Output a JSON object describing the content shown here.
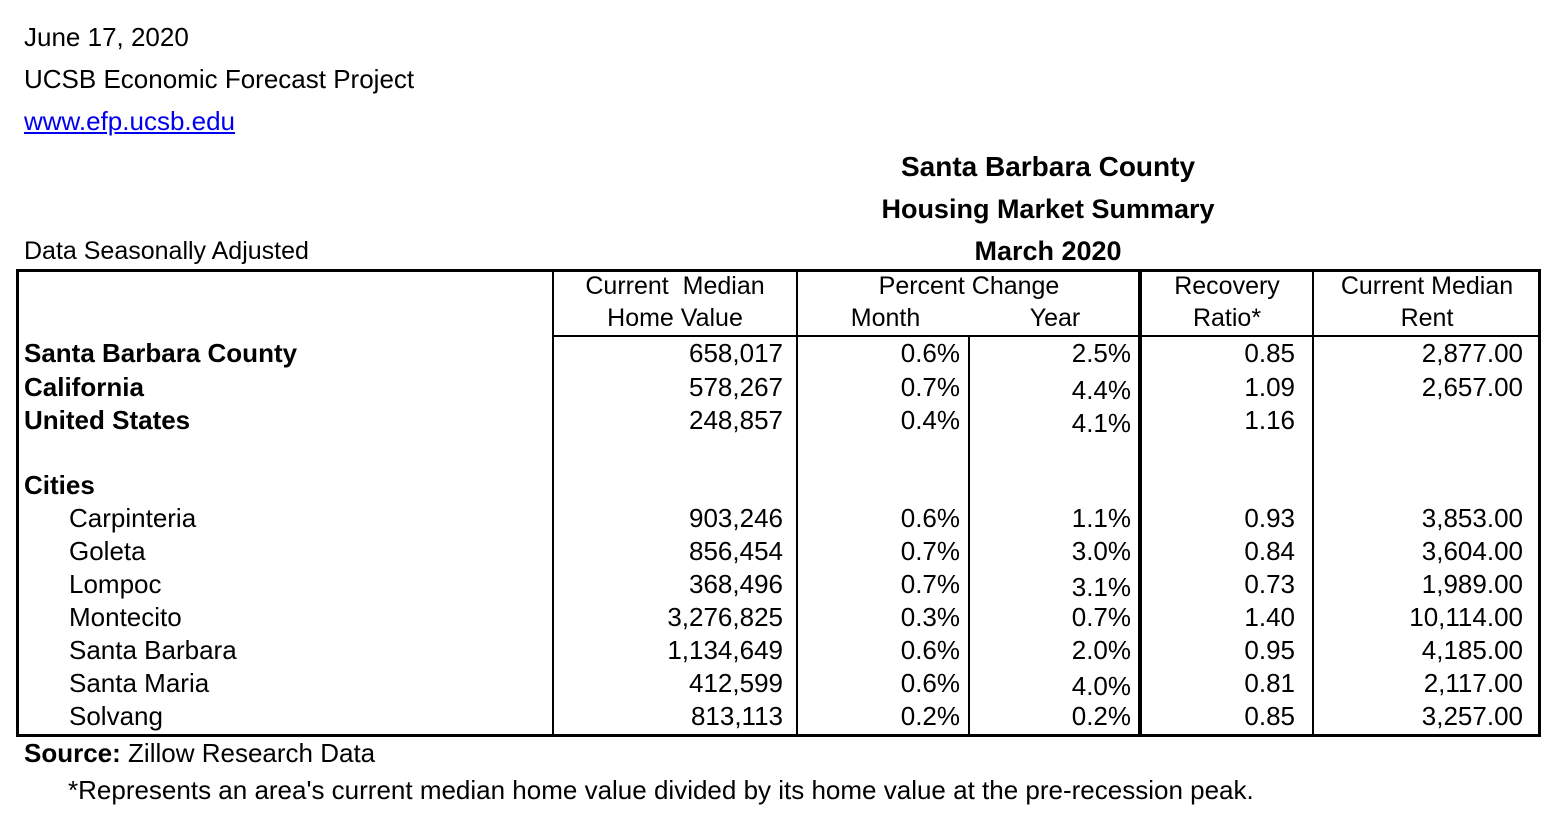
{
  "header": {
    "date": "June 17, 2020",
    "org": "UCSB Economic Forecast Project",
    "url": "www.efp.ucsb.edu",
    "title1": "Santa Barbara County",
    "title2": "Housing Market Summary",
    "title3": "March 2020",
    "note": "Data Seasonally Adjusted"
  },
  "columns": {
    "home_value_1": "Current  Median",
    "home_value_2": "Home Value",
    "pct_change": "Percent Change",
    "month": "Month",
    "year": "Year",
    "recovery_1": "Recovery",
    "recovery_2": "Ratio*",
    "rent_1": "Current Median",
    "rent_2": "Rent"
  },
  "regions": [
    {
      "name": "Santa Barbara County",
      "home_value": "658,017",
      "month": "0.6%",
      "year": "2.5%",
      "recovery": "0.85",
      "rent": "2,877.00"
    },
    {
      "name": "California",
      "home_value": "578,267",
      "month": "0.7%",
      "year": "4.4%",
      "recovery": "1.09",
      "rent": "2,657.00"
    },
    {
      "name": "United States",
      "home_value": "248,857",
      "month": "0.4%",
      "year": "4.1%",
      "recovery": "1.16",
      "rent": ""
    }
  ],
  "cities_label": "Cities",
  "cities": [
    {
      "name": "Carpinteria",
      "home_value": "903,246",
      "month": "0.6%",
      "year": "1.1%",
      "recovery": "0.93",
      "rent": "3,853.00"
    },
    {
      "name": "Goleta",
      "home_value": "856,454",
      "month": "0.7%",
      "year": "3.0%",
      "recovery": "0.84",
      "rent": "3,604.00"
    },
    {
      "name": "Lompoc",
      "home_value": "368,496",
      "month": "0.7%",
      "year": "3.1%",
      "recovery": "0.73",
      "rent": "1,989.00"
    },
    {
      "name": "Montecito",
      "home_value": "3,276,825",
      "month": "0.3%",
      "year": "0.7%",
      "recovery": "1.40",
      "rent": "10,114.00"
    },
    {
      "name": "Santa Barbara",
      "home_value": "1,134,649",
      "month": "0.6%",
      "year": "2.0%",
      "recovery": "0.95",
      "rent": "4,185.00"
    },
    {
      "name": "Santa Maria",
      "home_value": "412,599",
      "month": "0.6%",
      "year": "4.0%",
      "recovery": "0.81",
      "rent": "2,117.00"
    },
    {
      "name": "Solvang",
      "home_value": "813,113",
      "month": "0.2%",
      "year": "0.2%",
      "recovery": "0.85",
      "rent": "3,257.00"
    }
  ],
  "footer": {
    "source_label": "Source:",
    "source_text": " Zillow Research Data",
    "footnote": "*Represents an area's current median home value divided by its home value at the pre-recession peak."
  }
}
